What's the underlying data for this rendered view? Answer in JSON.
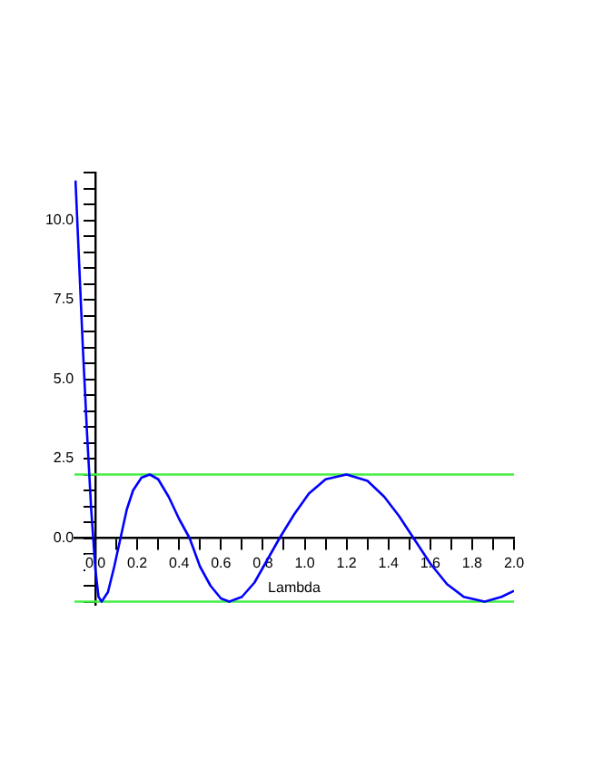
{
  "chart_data": {
    "type": "line",
    "xlabel": "Lambda",
    "series": [
      {
        "color": "#0000ff",
        "x": [
          -0.095,
          -0.08,
          -0.06,
          -0.04,
          -0.02,
          0,
          0.015,
          0.03,
          0.06,
          0.09,
          0.12,
          0.15,
          0.18,
          0.22,
          0.26,
          0.3,
          0.35,
          0.4,
          0.45,
          0.5,
          0.55,
          0.6,
          0.64,
          0.7,
          0.76,
          0.82,
          0.88,
          0.95,
          1.02,
          1.1,
          1.2,
          1.3,
          1.38,
          1.45,
          1.52,
          1.6,
          1.68,
          1.76,
          1.86,
          1.94,
          2.0
        ],
        "values": [
          11.25,
          9.0,
          6.0,
          3.3,
          0.9,
          -1.0,
          -1.85,
          -2.0,
          -1.7,
          -0.9,
          0,
          0.9,
          1.5,
          1.9,
          2.0,
          1.85,
          1.3,
          0.6,
          0,
          -0.9,
          -1.5,
          -1.9,
          -2.0,
          -1.85,
          -1.4,
          -0.7,
          0,
          0.75,
          1.4,
          1.85,
          2.0,
          1.8,
          1.3,
          0.7,
          0,
          -0.8,
          -1.45,
          -1.85,
          -2.0,
          -1.85,
          -1.66
        ]
      }
    ],
    "xlim": [
      -0.1,
      2.0
    ],
    "ylim": [
      -2.1,
      11.5
    ],
    "xticks": [
      {
        "value": 0,
        "label": "0.0"
      },
      {
        "value": 0.1,
        "label": null
      },
      {
        "value": 0.2,
        "label": "0.2"
      },
      {
        "value": 0.3,
        "label": null
      },
      {
        "value": 0.4,
        "label": "0.4"
      },
      {
        "value": 0.5,
        "label": null
      },
      {
        "value": 0.6,
        "label": "0.6"
      },
      {
        "value": 0.7,
        "label": null
      },
      {
        "value": 0.8,
        "label": "0.8"
      },
      {
        "value": 0.9,
        "label": null
      },
      {
        "value": 1,
        "label": "1.0"
      },
      {
        "value": 1.1,
        "label": null
      },
      {
        "value": 1.2,
        "label": "1.2"
      },
      {
        "value": 1.3,
        "label": null
      },
      {
        "value": 1.4,
        "label": "1.4"
      },
      {
        "value": 1.5,
        "label": null
      },
      {
        "value": 1.6,
        "label": "1.6"
      },
      {
        "value": 1.7,
        "label": null
      },
      {
        "value": 1.8,
        "label": "1.8"
      },
      {
        "value": 1.9,
        "label": null
      },
      {
        "value": 2,
        "label": "2.0"
      }
    ],
    "yticks": [
      {
        "value": -2,
        "label": null
      },
      {
        "value": -1.5,
        "label": null
      },
      {
        "value": -1,
        "label": null
      },
      {
        "value": -0.5,
        "label": null
      },
      {
        "value": 0,
        "label": "0.0"
      },
      {
        "value": 0.5,
        "label": null
      },
      {
        "value": 1,
        "label": null
      },
      {
        "value": 1.5,
        "label": null
      },
      {
        "value": 2,
        "label": null
      },
      {
        "value": 2.5,
        "label": "2.5"
      },
      {
        "value": 3,
        "label": null
      },
      {
        "value": 3.5,
        "label": null
      },
      {
        "value": 4,
        "label": null
      },
      {
        "value": 4.5,
        "label": null
      },
      {
        "value": 5,
        "label": "5.0"
      },
      {
        "value": 5.5,
        "label": null
      },
      {
        "value": 6,
        "label": null
      },
      {
        "value": 6.5,
        "label": null
      },
      {
        "value": 7,
        "label": null
      },
      {
        "value": 7.5,
        "label": "7.5"
      },
      {
        "value": 8,
        "label": null
      },
      {
        "value": 8.5,
        "label": null
      },
      {
        "value": 9,
        "label": null
      },
      {
        "value": 9.5,
        "label": null
      },
      {
        "value": 10,
        "label": "10.0"
      },
      {
        "value": 10.5,
        "label": null
      },
      {
        "value": 11,
        "label": null
      },
      {
        "value": 11.5,
        "label": null
      }
    ],
    "ref_lines": [
      {
        "axis": "y",
        "value": 2,
        "color": "#44ee44"
      },
      {
        "axis": "y",
        "value": -2,
        "color": "#44ee44"
      }
    ],
    "grid": false,
    "legend": false,
    "marker": "none",
    "line_style": "solid"
  }
}
